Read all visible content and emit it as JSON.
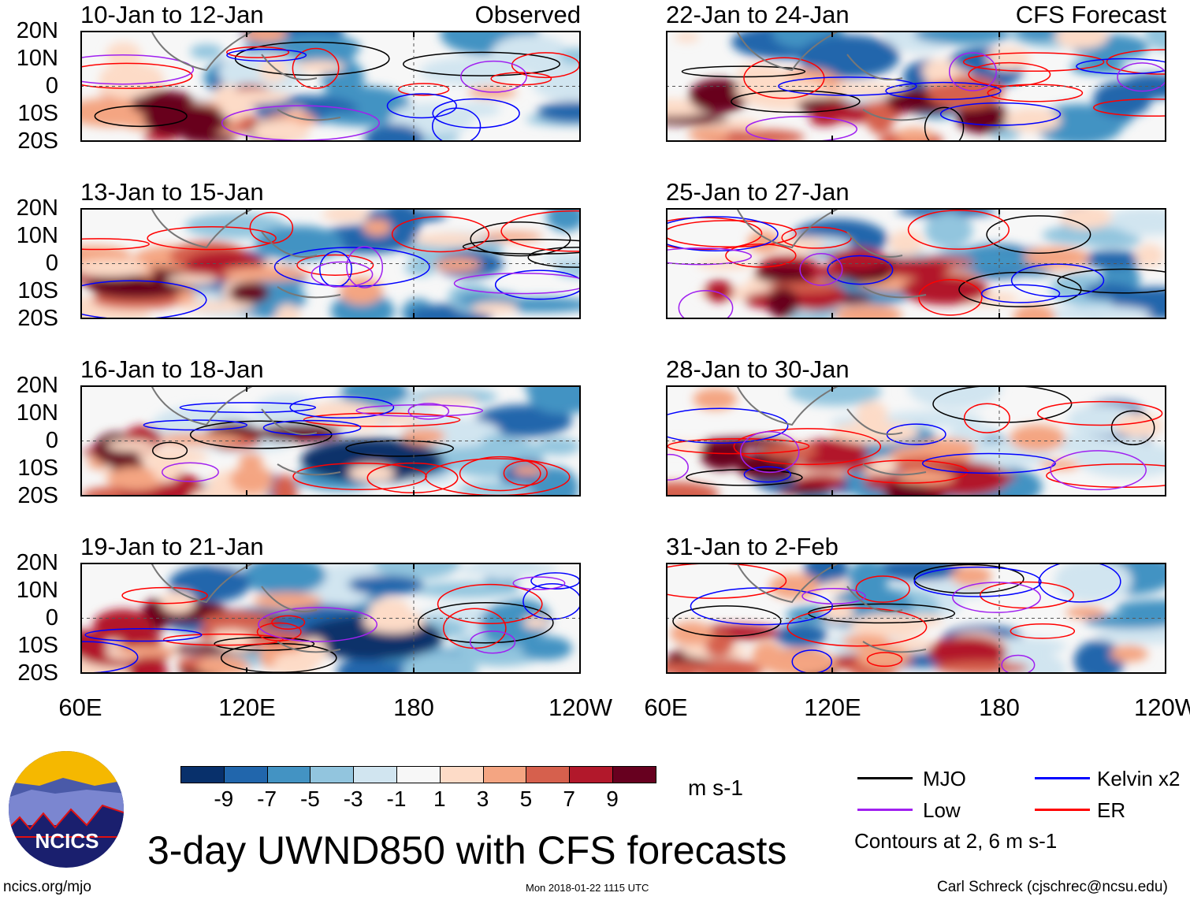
{
  "left_label": "Observed",
  "right_label": "CFS Forecast",
  "lat_labels": [
    "20N",
    "10N",
    "0",
    "10S",
    "20S"
  ],
  "lon_labels": [
    "60E",
    "120E",
    "180",
    "120W"
  ],
  "panels_left": [
    "10-Jan to 12-Jan",
    "13-Jan to 15-Jan",
    "16-Jan to 18-Jan",
    "19-Jan to 21-Jan"
  ],
  "panels_right": [
    "22-Jan to 24-Jan",
    "25-Jan to 27-Jan",
    "28-Jan to 30-Jan",
    "31-Jan to 2-Feb"
  ],
  "colorbar": {
    "colors": [
      "#08306b",
      "#2166ac",
      "#4393c3",
      "#92c5de",
      "#d1e5f0",
      "#f7f7f7",
      "#fddbc7",
      "#f4a582",
      "#d6604d",
      "#b2182b",
      "#67001f"
    ],
    "labels": [
      "-9",
      "-7",
      "-5",
      "-3",
      "-1",
      "1",
      "3",
      "5",
      "7",
      "9"
    ],
    "units": "m s-1"
  },
  "legend": {
    "items": [
      {
        "label": "MJO",
        "color": "#000000"
      },
      {
        "label": "Kelvin x2",
        "color": "#0000ff"
      },
      {
        "label": "Low",
        "color": "#a020f0"
      },
      {
        "label": "ER",
        "color": "#ff0000"
      }
    ],
    "note": "Contours at 2, 6 m s-1"
  },
  "title": "3-day UWND850 with CFS forecasts",
  "logo_text": "NCICS",
  "footer": {
    "url": "ncics.org/mjo",
    "timestamp": "Mon 2018-01-22 1115 UTC",
    "author": "Carl Schreck (cjschrec@ncsu.edu)"
  }
}
